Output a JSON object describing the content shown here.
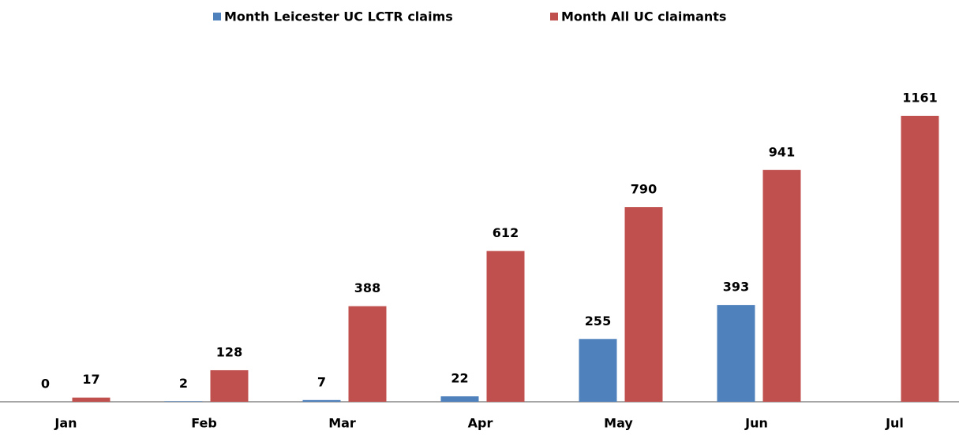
{
  "chart_data": {
    "type": "bar",
    "categories": [
      "Jan",
      "Feb",
      "Mar",
      "Apr",
      "May",
      "Jun",
      "Jul"
    ],
    "series": [
      {
        "name": "Month Leicester UC LCTR claims",
        "color": "#4f81bd",
        "values": [
          0,
          2,
          7,
          22,
          255,
          393,
          null
        ]
      },
      {
        "name": "Month All UC claimants",
        "color": "#c0504d",
        "values": [
          17,
          128,
          388,
          612,
          790,
          941,
          1161
        ]
      }
    ],
    "legend": "top"
  }
}
